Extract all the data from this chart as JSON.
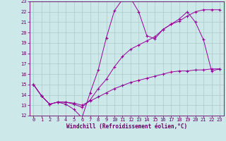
{
  "xlabel": "Windchill (Refroidissement éolien,°C)",
  "background_color": "#cce8e8",
  "grid_color": "#aacccc",
  "line_color": "#990099",
  "xlim": [
    -0.5,
    23.5
  ],
  "ylim": [
    12,
    23
  ],
  "yticks": [
    12,
    13,
    14,
    15,
    16,
    17,
    18,
    19,
    20,
    21,
    22,
    23
  ],
  "xticks": [
    0,
    1,
    2,
    3,
    4,
    5,
    6,
    7,
    8,
    9,
    10,
    11,
    12,
    13,
    14,
    15,
    16,
    17,
    18,
    19,
    20,
    21,
    22,
    23
  ],
  "line1_x": [
    0,
    1,
    2,
    3,
    4,
    5,
    6,
    7,
    8,
    9,
    10,
    11,
    12,
    13,
    14,
    15,
    16,
    17,
    18,
    19,
    20,
    21,
    22,
    23
  ],
  "line1_y": [
    15.0,
    13.9,
    13.1,
    13.3,
    13.1,
    12.6,
    11.8,
    14.2,
    16.4,
    19.5,
    22.1,
    23.2,
    23.3,
    22.0,
    19.7,
    19.4,
    20.3,
    20.8,
    21.3,
    22.0,
    21.0,
    19.3,
    16.3,
    16.5
  ],
  "line2_x": [
    0,
    1,
    2,
    3,
    4,
    5,
    6,
    7,
    8,
    9,
    10,
    11,
    12,
    13,
    14,
    15,
    16,
    17,
    18,
    19,
    20,
    21,
    22,
    23
  ],
  "line2_y": [
    15.0,
    13.9,
    13.1,
    13.3,
    13.3,
    13.1,
    12.8,
    13.5,
    14.6,
    15.5,
    16.7,
    17.7,
    18.4,
    18.8,
    19.2,
    19.6,
    20.3,
    20.8,
    21.1,
    21.6,
    22.0,
    22.2,
    22.2,
    22.2
  ],
  "line3_x": [
    0,
    1,
    2,
    3,
    4,
    5,
    6,
    7,
    8,
    9,
    10,
    11,
    12,
    13,
    14,
    15,
    16,
    17,
    18,
    19,
    20,
    21,
    22,
    23
  ],
  "line3_y": [
    15.0,
    13.9,
    13.1,
    13.3,
    13.3,
    13.2,
    13.0,
    13.4,
    13.8,
    14.2,
    14.6,
    14.9,
    15.2,
    15.4,
    15.6,
    15.8,
    16.0,
    16.2,
    16.3,
    16.3,
    16.4,
    16.4,
    16.5,
    16.5
  ],
  "tick_color": "#660066",
  "label_fontsize": 5.0,
  "xlabel_fontsize": 5.5
}
